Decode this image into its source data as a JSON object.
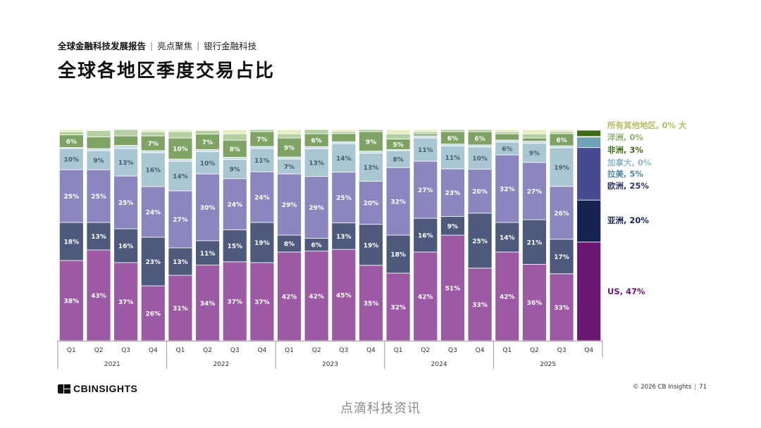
{
  "header": {
    "report_title": "全球金融科技发展报告",
    "separator": "|",
    "section": "亮点聚焦",
    "section_separator": "|",
    "topic": "银行金融科技"
  },
  "page_title": "全球各地区季度交易占比",
  "colors": {
    "US": "#9B5AA3",
    "Asia": "#4E5A7B",
    "Europe": "#8C86BE",
    "LatAm": "#A9C6D3",
    "Canada": "#C7DDE4",
    "Africa": "#7FA364",
    "Oceania": "#B4CFA2",
    "Other": "#E8EEC4",
    "highlight_US": "#6B1670",
    "highlight_Asia": "#14234F",
    "highlight_Europe": "#454A91",
    "highlight_LatAm": "#6FA1B7",
    "highlight_Canada": "#8FB7C9",
    "highlight_Africa": "#3F6B19"
  },
  "chart_data": {
    "type": "bar",
    "stacked": true,
    "normalized": true,
    "title": "全球各地区季度交易占比",
    "quarters": [
      "Q1",
      "Q2",
      "Q3",
      "Q4",
      "Q1",
      "Q2",
      "Q3",
      "Q4",
      "Q1",
      "Q2",
      "Q3",
      "Q4",
      "Q1",
      "Q2",
      "Q3",
      "Q4",
      "Q1",
      "Q2",
      "Q3",
      "Q4"
    ],
    "years": [
      {
        "label": "2021",
        "count": 4
      },
      {
        "label": "2022",
        "count": 4
      },
      {
        "label": "2023",
        "count": 4
      },
      {
        "label": "2024",
        "count": 4
      },
      {
        "label": "2025",
        "count": 4
      }
    ],
    "highlight_index": 19,
    "series": [
      {
        "key": "US",
        "name": "US",
        "values": [
          38,
          43,
          37,
          26,
          31,
          34,
          37,
          37,
          42,
          42,
          45,
          35,
          32,
          42,
          51,
          33,
          42,
          36,
          33,
          47
        ],
        "labels": [
          "38%",
          "43%",
          "37%",
          "26%",
          "31%",
          "34%",
          "37%",
          "37%",
          "42%",
          "42%",
          "45%",
          "35%",
          "32%",
          "42%",
          "51%",
          "33%",
          "42%",
          "36%",
          "33%",
          ""
        ]
      },
      {
        "key": "Asia",
        "name": "亚洲",
        "values": [
          18,
          13,
          16,
          23,
          13,
          11,
          15,
          19,
          8,
          6,
          13,
          19,
          18,
          16,
          9,
          25,
          14,
          21,
          17,
          20
        ],
        "labels": [
          "18%",
          "13%",
          "16%",
          "23%",
          "13%",
          "11%",
          "15%",
          "19%",
          "8%",
          "6%",
          "13%",
          "19%",
          "18%",
          "16%",
          "9%",
          "25%",
          "14%",
          "21%",
          "17%",
          ""
        ]
      },
      {
        "key": "Europe",
        "name": "欧洲",
        "values": [
          25,
          25,
          25,
          24,
          27,
          30,
          24,
          24,
          29,
          29,
          25,
          20,
          32,
          27,
          23,
          20,
          32,
          27,
          26,
          25
        ],
        "labels": [
          "25%",
          "25%",
          "25%",
          "24%",
          "27%",
          "30%",
          "24%",
          "24%",
          "29%",
          "29%",
          "25%",
          "20%",
          "32%",
          "27%",
          "23%",
          "20%",
          "32%",
          "27%",
          "26%",
          ""
        ]
      },
      {
        "key": "LatAm",
        "name": "拉美",
        "values": [
          10,
          9,
          13,
          16,
          14,
          10,
          9,
          11,
          7,
          13,
          14,
          13,
          8,
          11,
          11,
          10,
          6,
          9,
          19,
          5
        ],
        "labels": [
          "10%",
          "9%",
          "13%",
          "16%",
          "14%",
          "10%",
          "9%",
          "11%",
          "7%",
          "13%",
          "14%",
          "13%",
          "8%",
          "11%",
          "11%",
          "10%",
          "6%",
          "9%",
          "19%",
          ""
        ]
      },
      {
        "key": "Canada",
        "name": "加拿大",
        "values": [
          0.5,
          1,
          1.5,
          1,
          1,
          1,
          1,
          1,
          1,
          1,
          1,
          1,
          0.5,
          1,
          1,
          1,
          1,
          1,
          1,
          0.3
        ],
        "labels": [
          "",
          "",
          "",
          "",
          "",
          "",
          "",
          "",
          "",
          "",
          "",
          "",
          "",
          "",
          "",
          "",
          "",
          "",
          "",
          ""
        ]
      },
      {
        "key": "Africa",
        "name": "非洲",
        "values": [
          6,
          5.5,
          4.5,
          7,
          10,
          7,
          8,
          7,
          9,
          6,
          4,
          9,
          5,
          1,
          6,
          6,
          3,
          1.5,
          6,
          3
        ],
        "labels": [
          "6%",
          "",
          "",
          "7%",
          "10%",
          "7%",
          "8%",
          "7%",
          "9%",
          "6%",
          "",
          "9%",
          "5%",
          "",
          "6%",
          "6%",
          "",
          "",
          "6%",
          ""
        ]
      },
      {
        "key": "Oceania",
        "name": "大洋洲",
        "values": [
          1.5,
          3,
          3,
          2,
          3,
          1.5,
          3,
          1,
          2,
          2,
          1,
          1,
          2.5,
          1,
          1,
          1,
          1,
          2,
          1,
          0.3
        ],
        "labels": [
          "",
          "",
          "",
          "",
          "",
          "",
          "",
          "",
          "",
          "",
          "",
          "",
          "",
          "",
          "",
          "",
          "",
          "",
          "",
          ""
        ]
      },
      {
        "key": "Other",
        "name": "所有其他地区",
        "values": [
          1,
          0.5,
          0,
          1,
          1,
          0.5,
          2,
          0,
          2,
          0,
          1,
          0,
          2,
          1,
          0,
          0,
          1,
          2,
          1,
          0
        ],
        "labels": [
          "",
          "",
          "",
          "",
          "",
          "",
          "",
          "",
          "",
          "",
          "",
          "",
          "",
          "",
          "",
          "",
          "",
          "",
          "",
          ""
        ]
      }
    ],
    "legend": [
      {
        "key": "Other",
        "text": "所有其他地区, 0% 大",
        "color": "#B4BC60"
      },
      {
        "key": "Oceania",
        "text": "洋洲, 0%",
        "color": "#8FAE6E"
      },
      {
        "key": "Africa",
        "text": "非洲, 3%",
        "color": "#3F6B19"
      },
      {
        "key": "Canada",
        "text": "加拿大, 0%",
        "color": "#8FB7C9"
      },
      {
        "key": "LatAm",
        "text": "拉美, 5%",
        "color": "#4F86A0"
      },
      {
        "key": "Europe",
        "text": "欧洲, 25%",
        "color": "#2E3464"
      },
      {
        "key": "Asia",
        "text": "亚洲, 20%",
        "color": "#14234F"
      },
      {
        "key": "US",
        "text": "US, 47%",
        "color": "#6B1670"
      }
    ]
  },
  "footer": {
    "brand": "CBINSIGHTS",
    "copyright": "© 2026 CB Insights",
    "separator": "|",
    "page_number": "71"
  },
  "watermark": "点滴科技资讯"
}
